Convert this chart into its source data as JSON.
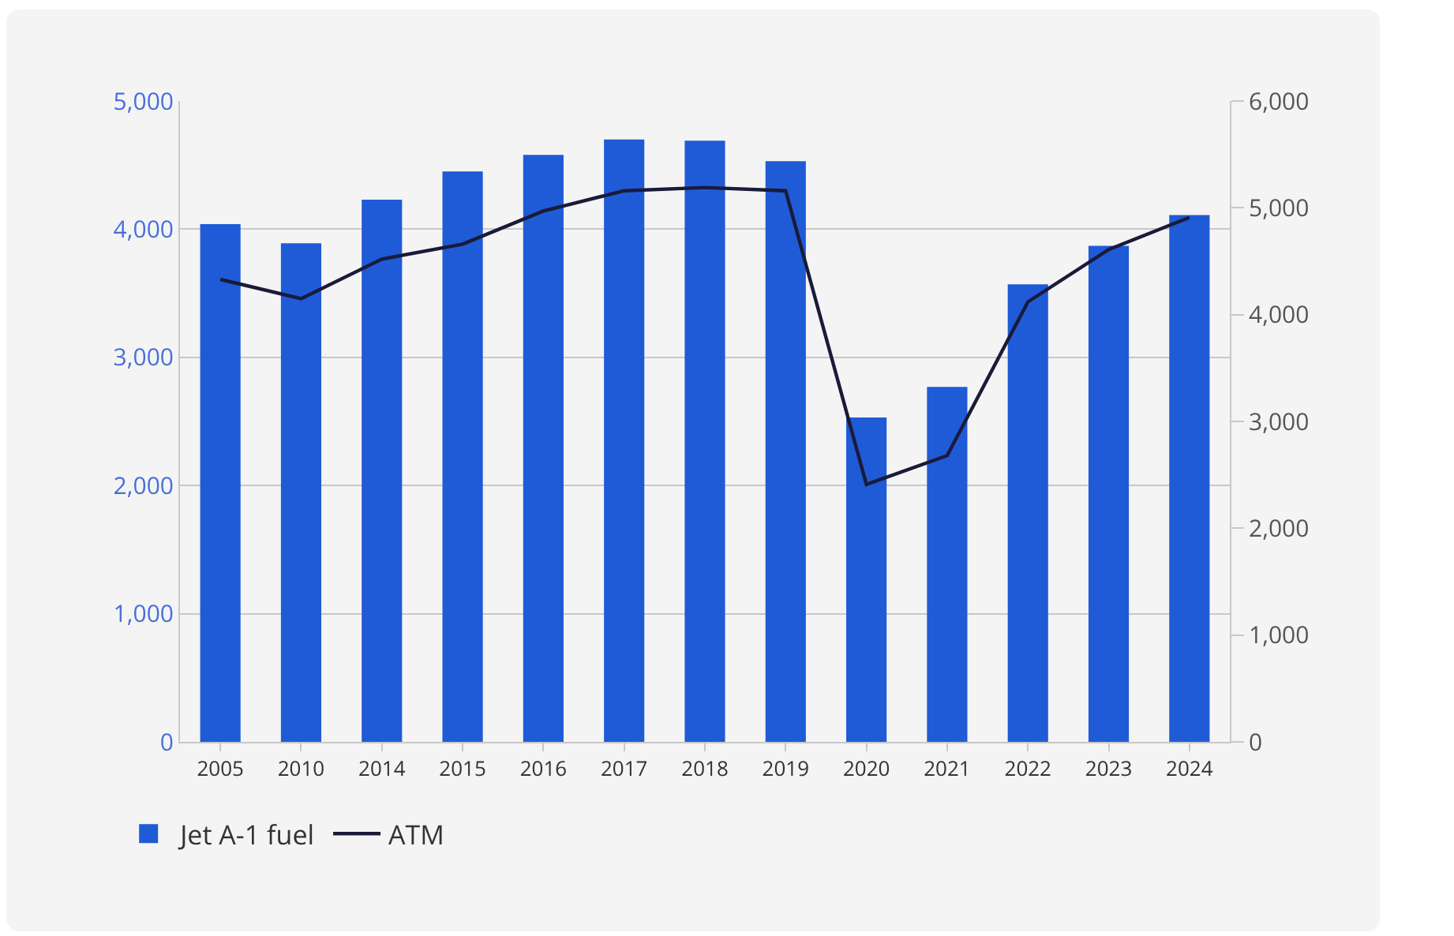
{
  "chart_data": {
    "type": "bar",
    "categories": [
      "2005",
      "2010",
      "2014",
      "2015",
      "2016",
      "2017",
      "2018",
      "2019",
      "2020",
      "2021",
      "2022",
      "2023",
      "2024"
    ],
    "series": [
      {
        "name": "Jet A-1 fuel",
        "color": "#1f5bd6",
        "values": [
          4040,
          3890,
          4230,
          4450,
          4580,
          4700,
          4690,
          4530,
          2530,
          2770,
          3570,
          3870,
          4110
        ]
      },
      {
        "name": "ATM",
        "type": "line",
        "axis": "y2",
        "color": "#1a1a3a",
        "values": [
          4330,
          4150,
          4520,
          4660,
          4970,
          5160,
          5190,
          5160,
          2410,
          2680,
          4120,
          4610,
          4910
        ]
      }
    ],
    "ylim": [
      0,
      5000
    ],
    "yticks": [
      {
        "value": 0,
        "label": "0"
      },
      {
        "value": 1000,
        "label": "1,000"
      },
      {
        "value": 2000,
        "label": "2,000"
      },
      {
        "value": 3000,
        "label": "3,000"
      },
      {
        "value": 4000,
        "label": "4,000"
      },
      {
        "value": 5000,
        "label": "5,000"
      }
    ],
    "y2lim": [
      0,
      6000
    ],
    "y2ticks": [
      {
        "value": 0,
        "label": "0"
      },
      {
        "value": 1000,
        "label": "1,000"
      },
      {
        "value": 2000,
        "label": "2,000"
      },
      {
        "value": 3000,
        "label": "3,000"
      },
      {
        "value": 4000,
        "label": "4,000"
      },
      {
        "value": 5000,
        "label": "5,000"
      },
      {
        "value": 6000,
        "label": "6,000"
      }
    ],
    "grid": "y",
    "legend": "bottom left",
    "marker": "none",
    "line_style": "solid"
  }
}
